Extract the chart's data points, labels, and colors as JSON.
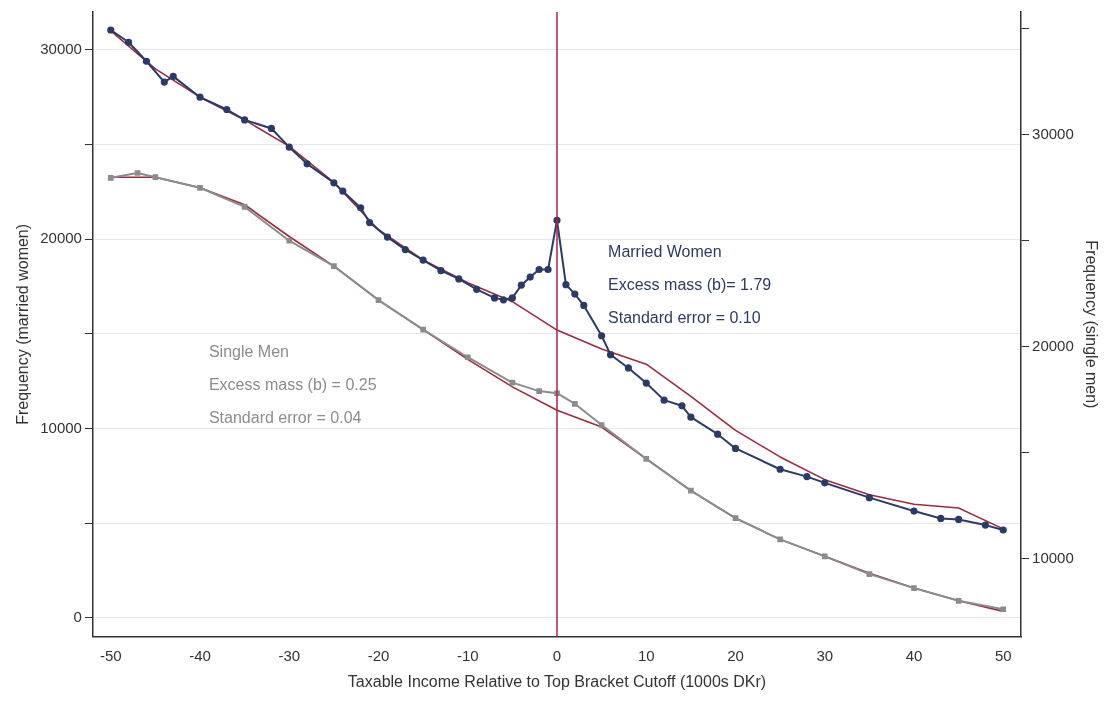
{
  "chart_data": {
    "type": "line",
    "xlabel": "Taxable Income Relative to Top Bracket Cutoff (1000s DKr)",
    "ylabel": "Frequency (married women)",
    "y2label": "Frequency (single men)",
    "xlim": [
      -52,
      52
    ],
    "xticks": [
      -50,
      -40,
      -30,
      -20,
      -10,
      0,
      10,
      20,
      30,
      40,
      50
    ],
    "ylim": [
      -1000,
      32000
    ],
    "yticks": [
      0,
      {
        "value": 5000,
        "label": null
      },
      10000,
      {
        "value": 15000,
        "label": null
      },
      20000,
      {
        "value": 25000,
        "label": null
      },
      30000
    ],
    "y2lim": [
      6300,
      35800
    ],
    "y2ticks": [
      10000,
      {
        "value": 15000,
        "label": null
      },
      20000,
      {
        "value": 25000,
        "label": null
      },
      30000,
      {
        "value": 35000,
        "label": null
      }
    ],
    "grid": "y",
    "legend": false,
    "line_style": "solid",
    "ref_lines": [
      {
        "axis": "x",
        "value": 0,
        "color": "#b0204a"
      }
    ],
    "annotations": [
      "Married Women",
      "Excess mass (b)= 1.79",
      "Standard error = 0.10",
      "Single Men",
      "Excess mass (b) = 0.25",
      "Standard error = 0.04"
    ],
    "series": [
      {
        "color": "#2b3a67",
        "marker": "circle",
        "x": [
          -50,
          -48,
          -46,
          -44,
          -43,
          -40,
          -37,
          -35,
          -32,
          -30,
          -28,
          -25,
          -24,
          -22,
          -21,
          -19,
          -17,
          -15,
          -13,
          -11,
          -9,
          -7,
          -6,
          -5,
          -4,
          -3,
          -2,
          -1,
          0,
          1,
          2,
          3,
          5,
          6,
          8,
          10,
          12,
          14,
          15,
          18,
          20,
          25,
          28,
          30,
          35,
          40,
          43,
          45,
          48,
          50
        ],
        "values": [
          31050,
          30400,
          29400,
          28300,
          28600,
          27500,
          26850,
          26300,
          25850,
          24860,
          23980,
          22980,
          22540,
          21660,
          20880,
          20110,
          19450,
          18900,
          18340,
          17900,
          17350,
          16900,
          16800,
          16900,
          17570,
          18000,
          18400,
          18400,
          21000,
          17600,
          17100,
          16500,
          14900,
          13900,
          13200,
          12400,
          11500,
          11200,
          10600,
          9700,
          8950,
          7850,
          7460,
          7130,
          6350,
          5640,
          5250,
          5200,
          4900,
          4640
        ]
      },
      {
        "color": "#8c8c8c",
        "marker": "square",
        "axis": "y2",
        "x": [
          -50,
          -47,
          -45,
          -40,
          -35,
          -30,
          -25,
          -20,
          -15,
          -10,
          -5,
          -2,
          0,
          2,
          5,
          10,
          15,
          20,
          25,
          30,
          35,
          40,
          45,
          50
        ],
        "values": [
          27970,
          28200,
          28000,
          27500,
          26600,
          25000,
          23800,
          22200,
          20800,
          19500,
          18300,
          17900,
          17800,
          17300,
          16300,
          14700,
          13200,
          11900,
          10900,
          10100,
          9260,
          8600,
          8000,
          7600
        ]
      },
      {
        "color": "#9b2c3c",
        "marker": "none",
        "x": [
          -50,
          -45,
          -40,
          -35,
          -30,
          -25,
          -20,
          -15,
          -10,
          -5,
          0,
          5,
          10,
          15,
          20,
          25,
          30,
          35,
          40,
          45,
          50
        ],
        "values": [
          31000,
          29000,
          27500,
          26300,
          24900,
          23000,
          20500,
          18900,
          17700,
          16700,
          15200,
          14200,
          13400,
          11700,
          9900,
          8500,
          7300,
          6500,
          6000,
          5800,
          4700
        ]
      },
      {
        "color": "#9b2c3c",
        "marker": "none",
        "axis": "y2",
        "x": [
          -50,
          -45,
          -40,
          -35,
          -30,
          -25,
          -20,
          -15,
          -10,
          -5,
          0,
          5,
          10,
          15,
          20,
          25,
          30,
          35,
          40,
          45,
          50
        ],
        "values": [
          28000,
          28000,
          27500,
          26700,
          25200,
          23800,
          22200,
          20800,
          19400,
          18100,
          17000,
          16200,
          14700,
          13200,
          11900,
          10900,
          10100,
          9300,
          8600,
          8000,
          7500
        ]
      }
    ]
  }
}
